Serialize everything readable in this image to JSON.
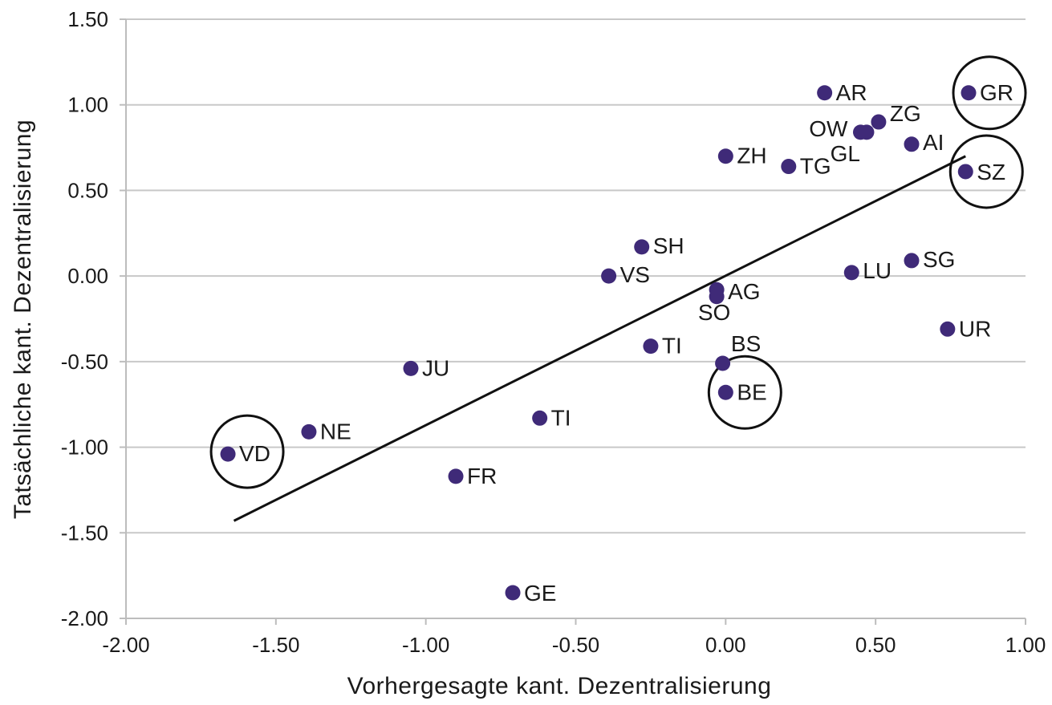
{
  "chart_data": {
    "type": "scatter",
    "xlabel": "Vorhergesagte kant. Dezentralisierung",
    "ylabel": "Tatsächliche kant. Dezentralisierung",
    "xlim": [
      -2.0,
      1.0
    ],
    "ylim": [
      -2.0,
      1.5
    ],
    "x_ticks": [
      "-2.00",
      "-1.50",
      "-1.00",
      "-0.50",
      "0.00",
      "0.50",
      "1.00"
    ],
    "y_ticks": [
      "1.50",
      "1.00",
      "0.50",
      "0.00",
      "-0.50",
      "-1.00",
      "-1.50",
      "-2.00"
    ],
    "x_tick_values": [
      -2.0,
      -1.5,
      -1.0,
      -0.5,
      0.0,
      0.5,
      1.0
    ],
    "y_tick_values": [
      1.5,
      1.0,
      0.5,
      0.0,
      -0.5,
      -1.0,
      -1.5,
      -2.0
    ],
    "grid": "horizontal",
    "marker_color": "#3f2a78",
    "points": [
      {
        "label": "AR",
        "x": 0.33,
        "y": 1.07
      },
      {
        "label": "GR",
        "x": 0.81,
        "y": 1.07,
        "highlight": true
      },
      {
        "label": "ZG",
        "x": 0.51,
        "y": 0.9
      },
      {
        "label": "OW",
        "x": 0.45,
        "y": 0.84
      },
      {
        "label": "GL",
        "x": 0.47,
        "y": 0.84
      },
      {
        "label": "AI",
        "x": 0.62,
        "y": 0.77
      },
      {
        "label": "ZH",
        "x": 0.0,
        "y": 0.7
      },
      {
        "label": "TG",
        "x": 0.21,
        "y": 0.64
      },
      {
        "label": "SZ",
        "x": 0.8,
        "y": 0.61,
        "highlight": true
      },
      {
        "label": "SH",
        "x": -0.28,
        "y": 0.17
      },
      {
        "label": "SG",
        "x": 0.62,
        "y": 0.09
      },
      {
        "label": "LU",
        "x": 0.42,
        "y": 0.02
      },
      {
        "label": "VS",
        "x": -0.39,
        "y": 0.0
      },
      {
        "label": "AG",
        "x": -0.03,
        "y": -0.08
      },
      {
        "label": "SO",
        "x": -0.03,
        "y": -0.12
      },
      {
        "label": "UR",
        "x": 0.74,
        "y": -0.31
      },
      {
        "label": "TI",
        "x": -0.25,
        "y": -0.41
      },
      {
        "label": "BS",
        "x": -0.01,
        "y": -0.51
      },
      {
        "label": "JU",
        "x": -1.05,
        "y": -0.54
      },
      {
        "label": "BE",
        "x": 0.0,
        "y": -0.68,
        "highlight": true
      },
      {
        "label": "TI",
        "x": -0.62,
        "y": -0.83
      },
      {
        "label": "NE",
        "x": -1.39,
        "y": -0.91
      },
      {
        "label": "VD",
        "x": -1.66,
        "y": -1.04,
        "highlight": true
      },
      {
        "label": "FR",
        "x": -0.9,
        "y": -1.17
      },
      {
        "label": "GE",
        "x": -0.71,
        "y": -1.85
      }
    ],
    "trendline": {
      "x": [
        -1.64,
        0.8
      ],
      "y": [
        -1.43,
        0.7
      ]
    }
  }
}
